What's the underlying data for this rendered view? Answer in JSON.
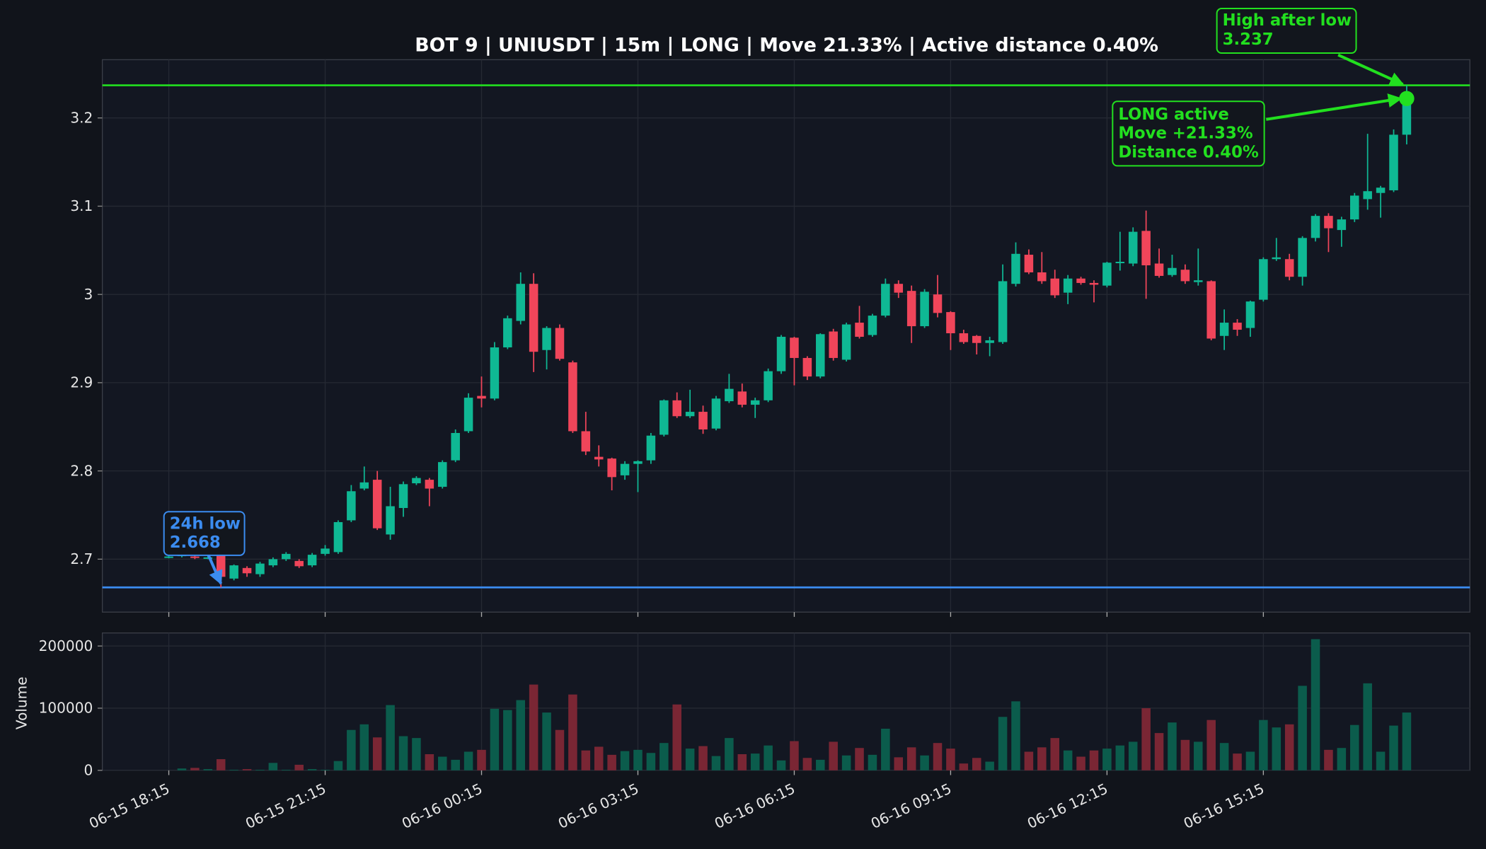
{
  "chart_data": [
    {
      "type": "candlestick",
      "title": "BOT 9 | UNIUSDT | 15m | LONG | Move 21.33% | Active distance 0.40%",
      "x": [
        "06-15 18:15",
        "06-15 18:30",
        "06-15 18:45",
        "06-15 19:00",
        "06-15 19:15",
        "06-15 19:30",
        "06-15 19:45",
        "06-15 20:00",
        "06-15 20:15",
        "06-15 20:30",
        "06-15 20:45",
        "06-15 21:00",
        "06-15 21:15",
        "06-15 21:30",
        "06-15 21:45",
        "06-15 22:00",
        "06-15 22:15",
        "06-15 22:30",
        "06-15 22:45",
        "06-15 23:00",
        "06-15 23:15",
        "06-15 23:30",
        "06-15 23:45",
        "06-16 00:00",
        "06-16 00:15",
        "06-16 00:30",
        "06-16 00:45",
        "06-16 01:00",
        "06-16 01:15",
        "06-16 01:30",
        "06-16 01:45",
        "06-16 02:00",
        "06-16 02:15",
        "06-16 02:30",
        "06-16 02:45",
        "06-16 03:00",
        "06-16 03:15",
        "06-16 03:30",
        "06-16 03:45",
        "06-16 04:00",
        "06-16 04:15",
        "06-16 04:30",
        "06-16 04:45",
        "06-16 05:00",
        "06-16 05:15",
        "06-16 05:30",
        "06-16 05:45",
        "06-16 06:00",
        "06-16 06:15",
        "06-16 06:30",
        "06-16 06:45",
        "06-16 07:00",
        "06-16 07:15",
        "06-16 07:30",
        "06-16 07:45",
        "06-16 08:00",
        "06-16 08:15",
        "06-16 08:30",
        "06-16 08:45",
        "06-16 09:00",
        "06-16 09:15",
        "06-16 09:30",
        "06-16 09:45",
        "06-16 10:00",
        "06-16 10:15",
        "06-16 10:30",
        "06-16 10:45",
        "06-16 11:00",
        "06-16 11:15",
        "06-16 11:30",
        "06-16 11:45",
        "06-16 12:00",
        "06-16 12:15",
        "06-16 12:30",
        "06-16 12:45",
        "06-16 13:00",
        "06-16 13:15",
        "06-16 13:30",
        "06-16 13:45",
        "06-16 14:00",
        "06-16 14:15",
        "06-16 14:30",
        "06-16 14:45",
        "06-16 15:00",
        "06-16 15:15",
        "06-16 15:30",
        "06-16 15:45",
        "06-16 16:00",
        "06-16 16:15",
        "06-16 16:30",
        "06-16 16:45",
        "06-16 17:00",
        "06-16 17:15",
        "06-16 17:30",
        "06-16 17:45",
        "06-16 18:00"
      ],
      "open": [
        2.703,
        2.704,
        2.703,
        2.702,
        2.708,
        2.678,
        2.69,
        2.683,
        2.693,
        2.7,
        2.698,
        2.693,
        2.706,
        2.708,
        2.744,
        2.78,
        2.79,
        2.728,
        2.758,
        2.786,
        2.79,
        2.782,
        2.812,
        2.845,
        2.885,
        2.882,
        2.94,
        2.97,
        3.012,
        2.937,
        2.962,
        2.923,
        2.845,
        2.816,
        2.814,
        2.795,
        2.808,
        2.812,
        2.841,
        2.88,
        2.862,
        2.867,
        2.848,
        2.879,
        2.89,
        2.875,
        2.88,
        2.913,
        2.951,
        2.928,
        2.907,
        2.958,
        2.926,
        2.968,
        2.954,
        2.976,
        3.012,
        3.004,
        2.964,
        3.0,
        2.98,
        2.956,
        2.953,
        2.945,
        2.946,
        3.012,
        3.045,
        3.025,
        3.018,
        3.002,
        3.018,
        3.013,
        3.01,
        3.036,
        3.035,
        3.072,
        3.035,
        3.022,
        3.028,
        3.014,
        3.015,
        2.953,
        2.968,
        2.962,
        2.994,
        3.04,
        3.04,
        3.02,
        3.064,
        3.089,
        3.073,
        3.085,
        3.108,
        3.115,
        3.118,
        3.181
      ],
      "high": [
        2.705,
        2.707,
        2.705,
        2.704,
        2.712,
        2.694,
        2.692,
        2.697,
        2.702,
        2.708,
        2.7,
        2.707,
        2.716,
        2.744,
        2.784,
        2.805,
        2.8,
        2.782,
        2.788,
        2.794,
        2.792,
        2.812,
        2.847,
        2.888,
        2.907,
        2.946,
        2.976,
        3.025,
        3.024,
        2.964,
        2.966,
        2.925,
        2.867,
        2.829,
        2.815,
        2.811,
        2.812,
        2.843,
        2.881,
        2.889,
        2.892,
        2.874,
        2.885,
        2.91,
        2.899,
        2.883,
        2.916,
        2.954,
        2.952,
        2.93,
        2.956,
        2.961,
        2.968,
        2.987,
        2.978,
        3.018,
        3.016,
        3.01,
        3.006,
        3.022,
        2.981,
        2.96,
        2.954,
        2.952,
        3.034,
        3.059,
        3.051,
        3.048,
        3.028,
        3.022,
        3.02,
        3.016,
        3.037,
        3.071,
        3.076,
        3.095,
        3.052,
        3.045,
        3.034,
        3.052,
        3.016,
        2.983,
        2.972,
        2.993,
        3.042,
        3.064,
        3.046,
        3.066,
        3.091,
        3.092,
        3.088,
        3.115,
        3.182,
        3.123,
        3.187,
        3.237
      ],
      "low": [
        2.701,
        2.702,
        2.7,
        2.7,
        2.668,
        2.676,
        2.68,
        2.68,
        2.691,
        2.698,
        2.69,
        2.691,
        2.704,
        2.706,
        2.742,
        2.778,
        2.733,
        2.722,
        2.748,
        2.784,
        2.76,
        2.78,
        2.81,
        2.843,
        2.872,
        2.88,
        2.938,
        2.966,
        2.912,
        2.915,
        2.925,
        2.843,
        2.818,
        2.805,
        2.778,
        2.79,
        2.776,
        2.808,
        2.839,
        2.86,
        2.86,
        2.842,
        2.846,
        2.877,
        2.872,
        2.86,
        2.878,
        2.91,
        2.897,
        2.903,
        2.905,
        2.925,
        2.924,
        2.95,
        2.952,
        2.974,
        2.996,
        2.945,
        2.962,
        2.974,
        2.937,
        2.944,
        2.932,
        2.93,
        2.944,
        3.009,
        3.023,
        3.012,
        2.996,
        2.989,
        3.011,
        2.991,
        3.008,
        3.027,
        3.032,
        2.995,
        3.019,
        3.02,
        3.012,
        3.01,
        2.948,
        2.937,
        2.953,
        2.952,
        2.992,
        3.038,
        3.016,
        3.01,
        3.06,
        3.048,
        3.054,
        3.082,
        3.096,
        3.087,
        3.116,
        3.17
      ],
      "close": [
        2.703,
        2.705,
        2.702,
        2.702,
        2.68,
        2.693,
        2.684,
        2.695,
        2.7,
        2.706,
        2.692,
        2.705,
        2.712,
        2.742,
        2.777,
        2.787,
        2.735,
        2.76,
        2.785,
        2.792,
        2.78,
        2.81,
        2.843,
        2.883,
        2.882,
        2.94,
        2.973,
        3.012,
        2.935,
        2.962,
        2.927,
        2.845,
        2.822,
        2.813,
        2.793,
        2.808,
        2.811,
        2.84,
        2.88,
        2.862,
        2.867,
        2.847,
        2.882,
        2.893,
        2.875,
        2.88,
        2.913,
        2.952,
        2.928,
        2.907,
        2.955,
        2.928,
        2.966,
        2.952,
        2.976,
        3.012,
        3.002,
        2.964,
        3.003,
        2.979,
        2.956,
        2.946,
        2.945,
        2.948,
        3.015,
        3.046,
        3.025,
        3.015,
        2.999,
        3.018,
        3.013,
        3.011,
        3.036,
        3.037,
        3.071,
        3.033,
        3.021,
        3.03,
        3.015,
        3.016,
        2.95,
        2.968,
        2.96,
        2.992,
        3.04,
        3.042,
        3.02,
        3.064,
        3.089,
        3.075,
        3.085,
        3.112,
        3.117,
        3.121,
        3.181,
        3.222
      ],
      "up_color": "#0fb894",
      "down_color": "#f0455a",
      "ylim": [
        2.64,
        3.266
      ],
      "yticks": [
        2.7,
        2.8,
        2.9,
        3,
        3.1,
        3.2
      ],
      "xticks": [
        "06-15 18:15",
        "06-15 21:15",
        "06-16 00:15",
        "06-16 03:15",
        "06-16 06:15",
        "06-16 09:15",
        "06-16 12:15",
        "06-16 15:15"
      ],
      "grid": true,
      "annotations": [
        {
          "label": "24h low",
          "value": 2.668,
          "x": "06-15 19:15",
          "color": "#3b8cf0"
        },
        {
          "label": "High after low",
          "value": 3.237,
          "x": "06-16 18:00",
          "color": "#22e01f"
        },
        {
          "lines": [
            "LONG active",
            "Move +21.33%",
            "Distance 0.40%"
          ],
          "x": "06-16 18:00",
          "color": "#22e01f"
        }
      ]
    },
    {
      "type": "bar",
      "ylabel": "Volume",
      "values": [
        0,
        3000,
        4000,
        2000,
        18000,
        1000,
        2000,
        1000,
        12000,
        1000,
        9000,
        2000,
        1000,
        15000,
        65000,
        74000,
        53000,
        105000,
        55000,
        52000,
        26000,
        22000,
        17000,
        30000,
        33000,
        99000,
        97000,
        113000,
        138000,
        93000,
        65000,
        122000,
        32000,
        38000,
        25000,
        31000,
        33000,
        28000,
        44000,
        106000,
        35000,
        39000,
        23000,
        52000,
        26000,
        27000,
        40000,
        16000,
        47000,
        20000,
        17000,
        46000,
        24000,
        36000,
        25000,
        67000,
        21000,
        37000,
        24000,
        44000,
        35000,
        11000,
        20000,
        14000,
        86000,
        111000,
        30000,
        37000,
        52000,
        32000,
        22000,
        32000,
        35000,
        40000,
        46000,
        100000,
        60000,
        77000,
        49000,
        46000,
        81000,
        44000,
        27000,
        30000,
        81000,
        69000,
        74000,
        136000,
        211000,
        33000,
        36000,
        73000,
        140000,
        30000,
        72000,
        93000
      ],
      "up_color": "#0b5c4c",
      "down_color": "#7a2634",
      "ylim": [
        0,
        221000
      ],
      "yticks": [
        0,
        100000,
        200000
      ],
      "grid": true
    }
  ]
}
